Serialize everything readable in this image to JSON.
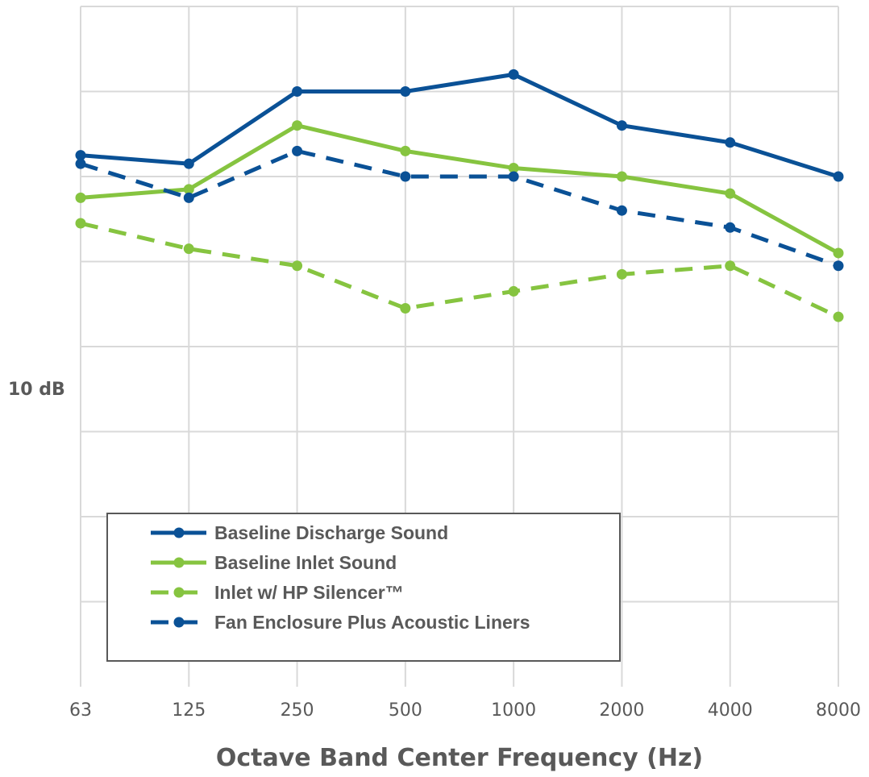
{
  "chart_data": {
    "type": "line",
    "title": "",
    "xlabel": "Octave Band Center Frequency (Hz)",
    "ylabel": "",
    "scale_label": "10 dB",
    "categories": [
      "63",
      "125",
      "250",
      "500",
      "1000",
      "2000",
      "4000",
      "8000"
    ],
    "y_unit": "dB (relative, 10 dB per gridline)",
    "ylim": [
      0,
      80
    ],
    "grid": true,
    "legend_position": "bottom-left",
    "series": [
      {
        "name": "Baseline Discharge Sound",
        "values": [
          62.5,
          61.5,
          70,
          70,
          72,
          66,
          64,
          60
        ],
        "color": "#0a5196",
        "dashed": false
      },
      {
        "name": "Baseline Inlet Sound",
        "values": [
          57.5,
          58.5,
          66,
          63,
          61,
          60,
          58,
          51
        ],
        "color": "#86c440",
        "dashed": false
      },
      {
        "name": "Inlet w/ HP Silencer™",
        "values": [
          54.5,
          51.5,
          49.5,
          44.5,
          46.5,
          48.5,
          49.5,
          43.5
        ],
        "color": "#86c440",
        "dashed": true
      },
      {
        "name": "Fan Enclosure Plus Acoustic Liners",
        "values": [
          61.5,
          57.5,
          63,
          60,
          60,
          56,
          54,
          49.5
        ],
        "color": "#0a5196",
        "dashed": true
      }
    ]
  }
}
